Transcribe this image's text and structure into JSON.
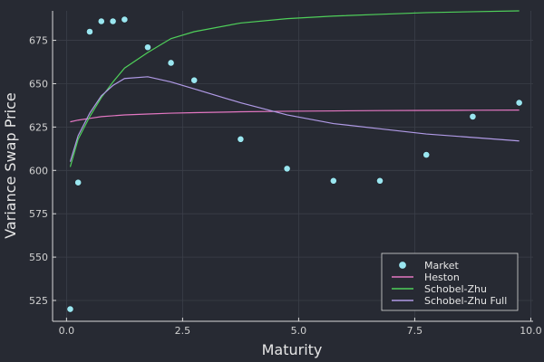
{
  "chart_data": {
    "type": "line",
    "title": "",
    "xlabel": "Maturity",
    "ylabel": "Variance Swap Price",
    "xlim": [
      -0.3,
      10.05
    ],
    "ylim": [
      513,
      692
    ],
    "xticks": [
      0.0,
      2.5,
      5.0,
      7.5,
      10.0
    ],
    "xtick_labels": [
      "0.0",
      "2.5",
      "5.0",
      "7.5",
      "10.0"
    ],
    "yticks": [
      525,
      550,
      575,
      600,
      625,
      650,
      675
    ],
    "ytick_labels": [
      "525",
      "550",
      "575",
      "600",
      "625",
      "650",
      "675"
    ],
    "grid": true,
    "legend_position": "bottom-right",
    "colors": {
      "background": "#272a33",
      "axis": "#d8d8d8",
      "grid": "#3b3f49",
      "Market": "#9ae6f0",
      "Heston": "#e377c2",
      "Schobel-Zhu": "#4fd05a",
      "Schobel-Zhu Full": "#b09ae6"
    },
    "series": [
      {
        "name": "Market",
        "kind": "scatter",
        "x": [
          0.08,
          0.25,
          0.5,
          0.75,
          1.0,
          1.25,
          1.75,
          2.25,
          2.75,
          3.75,
          4.75,
          5.75,
          6.75,
          7.75,
          8.75,
          9.75
        ],
        "y": [
          520,
          593,
          680,
          686,
          686,
          687,
          671,
          662,
          652,
          618,
          601,
          594,
          594,
          609,
          631,
          639
        ]
      },
      {
        "name": "Heston",
        "kind": "line",
        "x": [
          0.08,
          0.25,
          0.5,
          0.75,
          1.0,
          1.25,
          1.75,
          2.25,
          2.75,
          3.75,
          4.75,
          5.75,
          6.75,
          7.75,
          8.75,
          9.75
        ],
        "y": [
          628,
          629,
          630,
          631,
          631.5,
          632,
          632.5,
          633,
          633.3,
          633.8,
          634.1,
          634.3,
          634.5,
          634.6,
          634.7,
          634.8
        ]
      },
      {
        "name": "Schobel-Zhu",
        "kind": "line",
        "x": [
          0.08,
          0.25,
          0.5,
          0.75,
          1.0,
          1.25,
          1.75,
          2.25,
          2.75,
          3.75,
          4.75,
          5.75,
          6.75,
          7.75,
          8.75,
          9.75
        ],
        "y": [
          602,
          618,
          631,
          642,
          651,
          659,
          668,
          676,
          680,
          685,
          687.5,
          689,
          690,
          691,
          691.5,
          692
        ]
      },
      {
        "name": "Schobel-Zhu Full",
        "kind": "line",
        "x": [
          0.08,
          0.25,
          0.5,
          0.75,
          1.0,
          1.25,
          1.75,
          2.25,
          2.75,
          3.75,
          4.75,
          5.75,
          6.75,
          7.75,
          8.75,
          9.75
        ],
        "y": [
          605,
          620,
          633,
          643,
          649,
          653,
          654,
          651,
          647,
          639,
          632,
          627,
          624,
          621,
          619,
          617
        ]
      }
    ]
  }
}
